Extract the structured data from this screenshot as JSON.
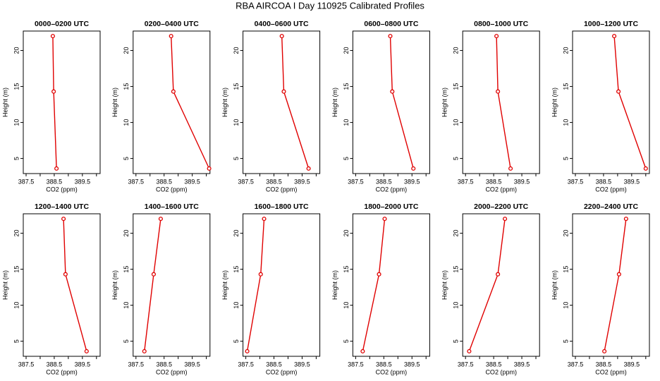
{
  "title": "RBA AIRCOA I  Day 110925  Calibrated Profiles",
  "chart_data": [
    {
      "type": "line",
      "title": "0000–0200 UTC",
      "x_label": "CO2 (ppm)",
      "y_label": "Height (m)",
      "xlim": [
        387.4,
        390.13
      ],
      "ylim": [
        2.9,
        22.7
      ],
      "xticks": [
        387.5,
        {
          "value": 388,
          "label": null
        },
        388.5,
        {
          "value": 389,
          "label": null
        },
        389.5,
        {
          "value": 390,
          "label": null
        }
      ],
      "yticks": [
        5,
        10,
        15,
        20
      ],
      "series": [
        {
          "color": "#e00000",
          "x": [
            388.58,
            388.48,
            388.45
          ],
          "values": [
            3.6,
            14.3,
            22.0
          ]
        }
      ]
    },
    {
      "type": "line",
      "title": "0200–0400 UTC",
      "x_label": "CO2 (ppm)",
      "y_label": "Height (m)",
      "xlim": [
        387.4,
        390.13
      ],
      "ylim": [
        2.9,
        22.7
      ],
      "xticks": [
        387.5,
        {
          "value": 388,
          "label": null
        },
        388.5,
        {
          "value": 389,
          "label": null
        },
        389.5,
        {
          "value": 390,
          "label": null
        }
      ],
      "yticks": [
        5,
        10,
        15,
        20
      ],
      "series": [
        {
          "color": "#e00000",
          "x": [
            390.1,
            388.83,
            388.75
          ],
          "values": [
            3.6,
            14.3,
            22.0
          ]
        }
      ]
    },
    {
      "type": "line",
      "title": "0400–0600 UTC",
      "x_label": "CO2 (ppm)",
      "y_label": "Height (m)",
      "xlim": [
        387.4,
        390.13
      ],
      "ylim": [
        2.9,
        22.7
      ],
      "xticks": [
        387.5,
        {
          "value": 388,
          "label": null
        },
        388.5,
        {
          "value": 389,
          "label": null
        },
        389.5,
        {
          "value": 390,
          "label": null
        }
      ],
      "yticks": [
        5,
        10,
        15,
        20
      ],
      "series": [
        {
          "color": "#e00000",
          "x": [
            389.73,
            388.85,
            388.78
          ],
          "values": [
            3.6,
            14.3,
            22.0
          ]
        }
      ]
    },
    {
      "type": "line",
      "title": "0600–0800 UTC",
      "x_label": "CO2 (ppm)",
      "y_label": "Height (m)",
      "xlim": [
        387.4,
        390.13
      ],
      "ylim": [
        2.9,
        22.7
      ],
      "xticks": [
        387.5,
        {
          "value": 388,
          "label": null
        },
        388.5,
        {
          "value": 389,
          "label": null
        },
        389.5,
        {
          "value": 390,
          "label": null
        }
      ],
      "yticks": [
        5,
        10,
        15,
        20
      ],
      "series": [
        {
          "color": "#e00000",
          "x": [
            389.55,
            388.8,
            388.73
          ],
          "values": [
            3.6,
            14.3,
            22.0
          ]
        }
      ]
    },
    {
      "type": "line",
      "title": "0800–1000 UTC",
      "x_label": "CO2 (ppm)",
      "y_label": "Height (m)",
      "xlim": [
        387.4,
        390.13
      ],
      "ylim": [
        2.9,
        22.7
      ],
      "xticks": [
        387.5,
        {
          "value": 388,
          "label": null
        },
        388.5,
        {
          "value": 389,
          "label": null
        },
        389.5,
        {
          "value": 390,
          "label": null
        }
      ],
      "yticks": [
        5,
        10,
        15,
        20
      ],
      "series": [
        {
          "color": "#e00000",
          "x": [
            389.1,
            388.65,
            388.6
          ],
          "values": [
            3.6,
            14.3,
            22.0
          ]
        }
      ]
    },
    {
      "type": "line",
      "title": "1000–1200 UTC",
      "x_label": "CO2 (ppm)",
      "y_label": "Height (m)",
      "xlim": [
        387.4,
        390.13
      ],
      "ylim": [
        2.9,
        22.7
      ],
      "xticks": [
        387.5,
        {
          "value": 388,
          "label": null
        },
        388.5,
        {
          "value": 389,
          "label": null
        },
        389.5,
        {
          "value": 390,
          "label": null
        }
      ],
      "yticks": [
        5,
        10,
        15,
        20
      ],
      "series": [
        {
          "color": "#e00000",
          "x": [
            390.0,
            389.03,
            388.88
          ],
          "values": [
            3.6,
            14.3,
            22.0
          ]
        }
      ]
    },
    {
      "type": "line",
      "title": "1200–1400 UTC",
      "x_label": "CO2 (ppm)",
      "y_label": "Height (m)",
      "xlim": [
        387.4,
        390.13
      ],
      "ylim": [
        2.9,
        22.7
      ],
      "xticks": [
        387.5,
        {
          "value": 388,
          "label": null
        },
        388.5,
        {
          "value": 389,
          "label": null
        },
        389.5,
        {
          "value": 390,
          "label": null
        }
      ],
      "yticks": [
        5,
        10,
        15,
        20
      ],
      "series": [
        {
          "color": "#e00000",
          "x": [
            389.65,
            388.9,
            388.83
          ],
          "values": [
            3.6,
            14.3,
            22.0
          ]
        }
      ]
    },
    {
      "type": "line",
      "title": "1400–1600 UTC",
      "x_label": "CO2 (ppm)",
      "y_label": "Height (m)",
      "xlim": [
        387.4,
        390.13
      ],
      "ylim": [
        2.9,
        22.7
      ],
      "xticks": [
        387.5,
        {
          "value": 388,
          "label": null
        },
        388.5,
        {
          "value": 389,
          "label": null
        },
        389.5,
        {
          "value": 390,
          "label": null
        }
      ],
      "yticks": [
        5,
        10,
        15,
        20
      ],
      "series": [
        {
          "color": "#e00000",
          "x": [
            387.8,
            388.13,
            388.38
          ],
          "values": [
            3.6,
            14.3,
            22.0
          ]
        }
      ]
    },
    {
      "type": "line",
      "title": "1600–1800 UTC",
      "x_label": "CO2 (ppm)",
      "y_label": "Height (m)",
      "xlim": [
        387.4,
        390.13
      ],
      "ylim": [
        2.9,
        22.7
      ],
      "xticks": [
        387.5,
        {
          "value": 388,
          "label": null
        },
        388.5,
        {
          "value": 389,
          "label": null
        },
        389.5,
        {
          "value": 390,
          "label": null
        }
      ],
      "yticks": [
        5,
        10,
        15,
        20
      ],
      "series": [
        {
          "color": "#e00000",
          "x": [
            387.55,
            388.03,
            388.15
          ],
          "values": [
            3.6,
            14.3,
            22.0
          ]
        }
      ]
    },
    {
      "type": "line",
      "title": "1800–2000 UTC",
      "x_label": "CO2 (ppm)",
      "y_label": "Height (m)",
      "xlim": [
        387.4,
        390.13
      ],
      "ylim": [
        2.9,
        22.7
      ],
      "xticks": [
        387.5,
        {
          "value": 388,
          "label": null
        },
        388.5,
        {
          "value": 389,
          "label": null
        },
        389.5,
        {
          "value": 390,
          "label": null
        }
      ],
      "yticks": [
        5,
        10,
        15,
        20
      ],
      "series": [
        {
          "color": "#e00000",
          "x": [
            387.75,
            388.33,
            388.53
          ],
          "values": [
            3.6,
            14.3,
            22.0
          ]
        }
      ]
    },
    {
      "type": "line",
      "title": "2000–2200 UTC",
      "x_label": "CO2 (ppm)",
      "y_label": "Height (m)",
      "xlim": [
        387.4,
        390.13
      ],
      "ylim": [
        2.9,
        22.7
      ],
      "xticks": [
        387.5,
        {
          "value": 388,
          "label": null
        },
        388.5,
        {
          "value": 389,
          "label": null
        },
        389.5,
        {
          "value": 390,
          "label": null
        }
      ],
      "yticks": [
        5,
        10,
        15,
        20
      ],
      "series": [
        {
          "color": "#e00000",
          "x": [
            387.63,
            388.65,
            388.9
          ],
          "values": [
            3.6,
            14.3,
            22.0
          ]
        }
      ]
    },
    {
      "type": "line",
      "title": "2200–2400 UTC",
      "x_label": "CO2 (ppm)",
      "y_label": "Height (m)",
      "xlim": [
        387.4,
        390.13
      ],
      "ylim": [
        2.9,
        22.7
      ],
      "xticks": [
        387.5,
        {
          "value": 388,
          "label": null
        },
        388.5,
        {
          "value": 389,
          "label": null
        },
        389.5,
        {
          "value": 390,
          "label": null
        }
      ],
      "yticks": [
        5,
        10,
        15,
        20
      ],
      "series": [
        {
          "color": "#e00000",
          "x": [
            388.53,
            389.05,
            389.3
          ],
          "values": [
            3.6,
            14.3,
            22.0
          ]
        }
      ]
    }
  ]
}
